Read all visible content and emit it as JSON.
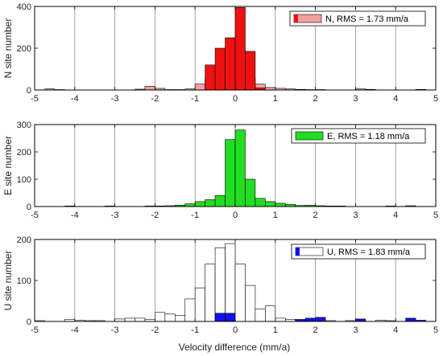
{
  "chart_data": [
    {
      "type": "bar",
      "panel": "N",
      "xlim": [
        -5,
        5
      ],
      "ylim": [
        0,
        400
      ],
      "yticks": [
        0,
        200,
        400
      ],
      "xticks": [
        -5,
        -4,
        -3,
        -2,
        -1,
        0,
        1,
        2,
        3,
        4,
        5
      ],
      "bin_width": 0.25,
      "xlabel": "",
      "ylabel": "N site number",
      "legend": "N, RMS = 1.73 mm/a",
      "legend_position": "top-right",
      "grid": "vertical lines at integer x",
      "series": [
        {
          "name": "N, RMS = 1.73 mm/a",
          "color": "#f4a0a0",
          "bins": [
            {
              "x": -4.625,
              "y": 5
            },
            {
              "x": -4.375,
              "y": 2
            },
            {
              "x": -2.375,
              "y": 4
            },
            {
              "x": -2.125,
              "y": 18
            },
            {
              "x": -1.875,
              "y": 8
            },
            {
              "x": -1.625,
              "y": 2
            },
            {
              "x": -1.375,
              "y": 2
            },
            {
              "x": -1.125,
              "y": 5
            },
            {
              "x": -0.875,
              "y": 28
            },
            {
              "x": -0.625,
              "y": 55
            },
            {
              "x": -0.375,
              "y": 55
            },
            {
              "x": -0.125,
              "y": 58
            },
            {
              "x": 0.125,
              "y": 55
            },
            {
              "x": 0.375,
              "y": 55
            },
            {
              "x": 0.625,
              "y": 28
            },
            {
              "x": 0.875,
              "y": 12
            },
            {
              "x": 1.125,
              "y": 8
            },
            {
              "x": 1.375,
              "y": 5
            },
            {
              "x": 1.625,
              "y": 3
            },
            {
              "x": 1.875,
              "y": 2
            },
            {
              "x": 2.125,
              "y": 2
            },
            {
              "x": 3.125,
              "y": 5
            },
            {
              "x": 3.375,
              "y": 3
            },
            {
              "x": 4.625,
              "y": 3
            }
          ]
        },
        {
          "name": "",
          "color": "#ee1111",
          "bins": [
            {
              "x": -0.625,
              "y": 120
            },
            {
              "x": -0.375,
              "y": 200
            },
            {
              "x": -0.125,
              "y": 250
            },
            {
              "x": 0.125,
              "y": 395
            },
            {
              "x": 0.375,
              "y": 185
            },
            {
              "x": 0.625,
              "y": 10
            }
          ]
        }
      ]
    },
    {
      "type": "bar",
      "panel": "E",
      "xlim": [
        -5,
        5
      ],
      "ylim": [
        0,
        300
      ],
      "yticks": [
        0,
        100,
        200,
        300
      ],
      "xticks": [
        -5,
        -4,
        -3,
        -2,
        -1,
        0,
        1,
        2,
        3,
        4,
        5
      ],
      "bin_width": 0.25,
      "xlabel": "",
      "ylabel": "E site number",
      "legend": "E, RMS = 1.18 mm/a",
      "legend_position": "top-right",
      "grid": "vertical lines at integer x",
      "series": [
        {
          "name": "E, RMS = 1.18 mm/a",
          "color": "#22dd22",
          "bins": [
            {
              "x": -4.125,
              "y": 2
            },
            {
              "x": -3.125,
              "y": 2
            },
            {
              "x": -2.125,
              "y": 2
            },
            {
              "x": -1.875,
              "y": 2
            },
            {
              "x": -1.625,
              "y": 3
            },
            {
              "x": -1.375,
              "y": 5
            },
            {
              "x": -1.125,
              "y": 10
            },
            {
              "x": -0.875,
              "y": 18
            },
            {
              "x": -0.625,
              "y": 25
            },
            {
              "x": -0.375,
              "y": 40
            },
            {
              "x": -0.125,
              "y": 245
            },
            {
              "x": 0.125,
              "y": 280
            },
            {
              "x": 0.375,
              "y": 100
            },
            {
              "x": 0.625,
              "y": 30
            },
            {
              "x": 0.875,
              "y": 18
            },
            {
              "x": 1.125,
              "y": 12
            },
            {
              "x": 1.375,
              "y": 8
            },
            {
              "x": 1.625,
              "y": 4
            },
            {
              "x": 1.875,
              "y": 5
            },
            {
              "x": 2.125,
              "y": 3
            },
            {
              "x": 2.375,
              "y": 2
            },
            {
              "x": 2.625,
              "y": 2
            },
            {
              "x": 3.875,
              "y": 2
            },
            {
              "x": 4.375,
              "y": 3
            }
          ]
        }
      ]
    },
    {
      "type": "bar",
      "panel": "U",
      "xlim": [
        -5,
        5
      ],
      "ylim": [
        0,
        200
      ],
      "yticks": [
        0,
        100,
        200
      ],
      "xticks": [
        -5,
        -4,
        -3,
        -2,
        -1,
        0,
        1,
        2,
        3,
        4,
        5
      ],
      "bin_width": 0.25,
      "xlabel": "Velocity difference (mm/a)",
      "ylabel": "U site number",
      "legend": "U, RMS = 1.83 mm/a",
      "legend_position": "top-right",
      "grid": "vertical lines at integer x",
      "series": [
        {
          "name": "U, RMS = 1.83 mm/a",
          "color": "#ffffff",
          "bins": [
            {
              "x": -4.875,
              "y": 2
            },
            {
              "x": -4.125,
              "y": 5
            },
            {
              "x": -3.875,
              "y": 3
            },
            {
              "x": -3.625,
              "y": 2
            },
            {
              "x": -3.375,
              "y": 2
            },
            {
              "x": -2.875,
              "y": 6
            },
            {
              "x": -2.625,
              "y": 8
            },
            {
              "x": -2.375,
              "y": 8
            },
            {
              "x": -2.125,
              "y": 5
            },
            {
              "x": -1.875,
              "y": 22
            },
            {
              "x": -1.625,
              "y": 18
            },
            {
              "x": -1.375,
              "y": 15
            },
            {
              "x": -1.125,
              "y": 55
            },
            {
              "x": -0.875,
              "y": 82
            },
            {
              "x": -0.625,
              "y": 140
            },
            {
              "x": -0.375,
              "y": 180
            },
            {
              "x": -0.125,
              "y": 190
            },
            {
              "x": 0.125,
              "y": 140
            },
            {
              "x": 0.375,
              "y": 88
            },
            {
              "x": 0.625,
              "y": 30
            },
            {
              "x": 0.875,
              "y": 38
            },
            {
              "x": 1.125,
              "y": 8
            },
            {
              "x": 1.375,
              "y": 5
            },
            {
              "x": 2.375,
              "y": 2
            },
            {
              "x": 2.875,
              "y": 2
            },
            {
              "x": 3.625,
              "y": 3
            },
            {
              "x": 3.875,
              "y": 2
            }
          ]
        },
        {
          "name": "",
          "color": "#1111ee",
          "bins": [
            {
              "x": -0.375,
              "y": 20
            },
            {
              "x": -0.125,
              "y": 20
            },
            {
              "x": 1.625,
              "y": 5
            },
            {
              "x": 1.875,
              "y": 8
            },
            {
              "x": 2.125,
              "y": 10
            },
            {
              "x": 3.125,
              "y": 6
            },
            {
              "x": 4.375,
              "y": 8
            },
            {
              "x": 4.625,
              "y": 3
            }
          ]
        }
      ]
    }
  ]
}
